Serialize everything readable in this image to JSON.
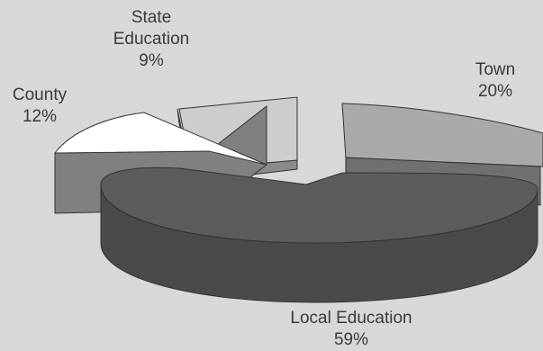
{
  "chart_data": {
    "type": "pie",
    "style": "3d-exploded",
    "title": "",
    "slices": [
      {
        "label": "Town",
        "value": 20,
        "value_label": "20%",
        "color": "#a9a9a9"
      },
      {
        "label": "Local Education",
        "value": 59,
        "value_label": "59%",
        "color": "#5c5c5c"
      },
      {
        "label": "County",
        "value": 12,
        "value_label": "12%",
        "color": "#ffffff"
      },
      {
        "label": "State Education",
        "value": 9,
        "value_label": "9%",
        "color": "#cdcdcd"
      }
    ]
  },
  "labels": {
    "town": {
      "name": "Town",
      "pct": "20%"
    },
    "local": {
      "name": "Local Education",
      "pct": "59%"
    },
    "county": {
      "name": "County",
      "pct": "12%"
    },
    "state": {
      "name_line1": "State",
      "name_line2": "Education",
      "pct": "9%"
    }
  }
}
